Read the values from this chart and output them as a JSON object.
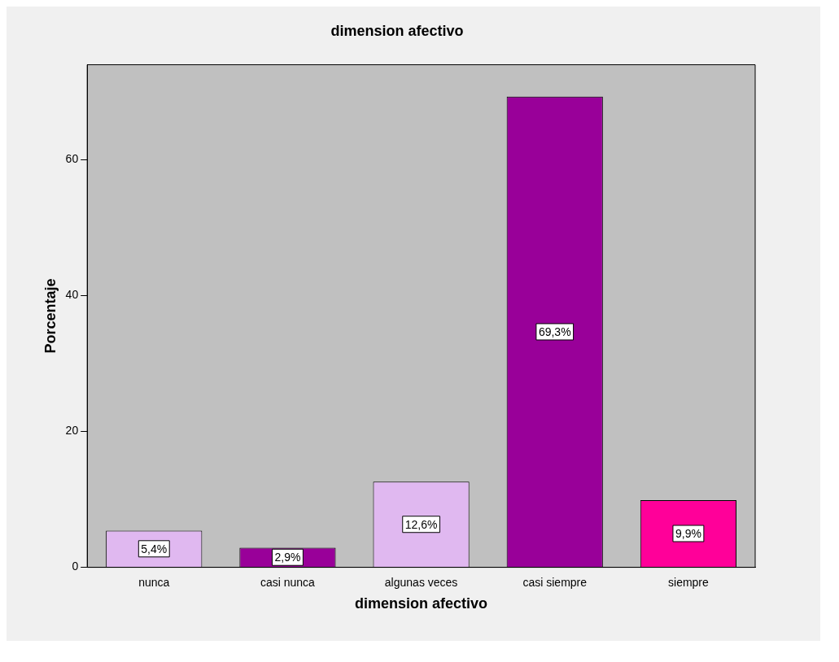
{
  "chart_data": {
    "type": "bar",
    "title": "dimension afectivo",
    "xlabel": "dimension afectivo",
    "ylabel": "Porcentaje",
    "categories": [
      "nunca",
      "casi nunca",
      "algunas veces",
      "casi siempre",
      "siempre"
    ],
    "values": [
      5.4,
      2.9,
      12.6,
      69.3,
      9.9
    ],
    "colors": [
      "#e0b8f0",
      "#990099",
      "#e0b8f0",
      "#990099",
      "#ff0099"
    ],
    "value_labels": [
      "5,4%",
      "2,9%",
      "12,6%",
      "69,3%",
      "9,9%"
    ],
    "ylim": [
      0,
      74
    ],
    "yticks": [
      0,
      20,
      40,
      60
    ],
    "grid": false,
    "legend": false
  }
}
